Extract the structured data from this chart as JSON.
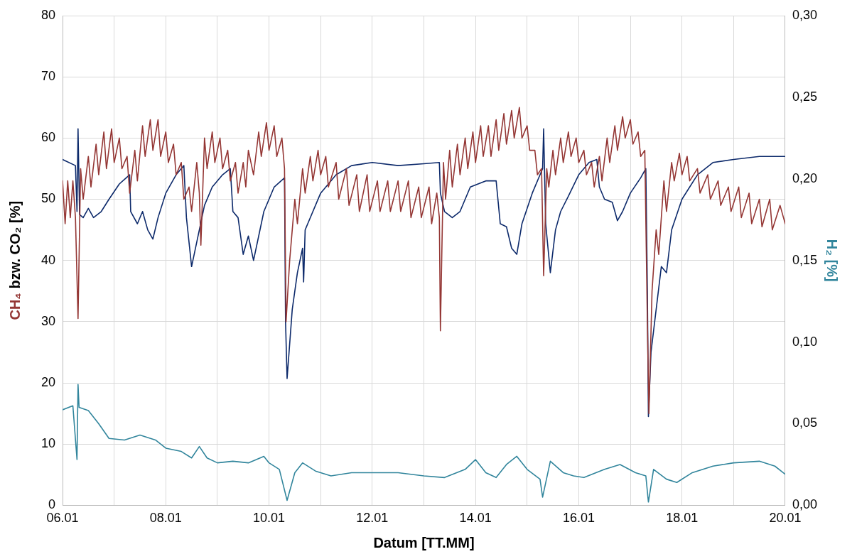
{
  "chart_data": {
    "type": "line",
    "xlabel": "Datum [TT.MM]",
    "ylabel": "CH₄ bzw. CO₂ [%]",
    "y2label": "H₂ [%]",
    "xlim": [
      "--01-06",
      "--01-20"
    ],
    "xticks": [
      {
        "value": "--01-06",
        "label": "06.01"
      },
      {
        "value": "--01-07",
        "label": null
      },
      {
        "value": "--01-08",
        "label": "08.01"
      },
      {
        "value": "--01-09",
        "label": null
      },
      {
        "value": "--01-10",
        "label": "10.01"
      },
      {
        "value": "--01-11",
        "label": null
      },
      {
        "value": "--01-12",
        "label": "12.01"
      },
      {
        "value": "--01-13",
        "label": null
      },
      {
        "value": "--01-14",
        "label": "14.01"
      },
      {
        "value": "--01-15",
        "label": null
      },
      {
        "value": "--01-16",
        "label": "16.01"
      },
      {
        "value": "--01-17",
        "label": null
      },
      {
        "value": "--01-18",
        "label": "18.01"
      },
      {
        "value": "--01-19",
        "label": null
      },
      {
        "value": "--01-20",
        "label": "20.01"
      }
    ],
    "ylim": [
      0,
      80
    ],
    "yticks": [
      0,
      10,
      20,
      30,
      40,
      50,
      60,
      70,
      80
    ],
    "y2lim": [
      0,
      0.3
    ],
    "y2ticks": [
      {
        "value": 0,
        "label": "0,00"
      },
      {
        "value": 0.05,
        "label": "0,05"
      },
      {
        "value": 0.1,
        "label": "0,10"
      },
      {
        "value": 0.15,
        "label": "0,15"
      },
      {
        "value": 0.2,
        "label": "0,20"
      },
      {
        "value": 0.25,
        "label": "0,25"
      },
      {
        "value": 0.3,
        "label": "0,30"
      }
    ],
    "grid": true,
    "legend": false,
    "marker": "none",
    "line_style": "solid",
    "series": [
      {
        "color": "#943634",
        "x": [
          "--01-06T00:00",
          "--01-06T01:12",
          "--01-06T02:24",
          "--01-06T03:36",
          "--01-06T04:48",
          "--01-06T06:00",
          "--01-06T07:12",
          "--01-06T08:24",
          "--01-06T09:36",
          "--01-06T12:00",
          "--01-06T13:12",
          "--01-06T15:36",
          "--01-06T16:48",
          "--01-06T19:12",
          "--01-06T20:24",
          "--01-06T22:48",
          "--01-07T00:00",
          "--01-07T02:24",
          "--01-07T03:36",
          "--01-07T06:00",
          "--01-07T07:12",
          "--01-07T09:36",
          "--01-07T10:48",
          "--01-07T13:12",
          "--01-07T14:24",
          "--01-07T16:48",
          "--01-07T18:00",
          "--01-07T20:24",
          "--01-07T21:36",
          "--01-08T00:00",
          "--01-08T01:12",
          "--01-08T03:36",
          "--01-08T04:48",
          "--01-08T07:12",
          "--01-08T08:24",
          "--01-08T10:48",
          "--01-08T12:00",
          "--01-08T14:24",
          "--01-08T15:36",
          "--01-08T16:19",
          "--01-08T18:00",
          "--01-08T19:12",
          "--01-08T21:36",
          "--01-08T22:48",
          "--01-09T01:12",
          "--01-09T02:24",
          "--01-09T04:48",
          "--01-09T06:00",
          "--01-09T08:24",
          "--01-09T09:36",
          "--01-09T12:00",
          "--01-09T13:12",
          "--01-09T14:24",
          "--01-09T16:48",
          "--01-09T19:12",
          "--01-09T20:24",
          "--01-09T22:48",
          "--01-10T00:00",
          "--01-10T02:24",
          "--01-10T03:36",
          "--01-10T06:00",
          "--01-10T07:12",
          "--01-10T07:55",
          "--01-10T09:36",
          "--01-10T10:48",
          "--01-10T12:00",
          "--01-10T13:12",
          "--01-10T15:36",
          "--01-10T16:48",
          "--01-10T19:12",
          "--01-10T20:24",
          "--01-10T22:48",
          "--01-11T00:00",
          "--01-11T02:24",
          "--01-11T03:36",
          "--01-11T07:12",
          "--01-11T08:24",
          "--01-11T12:00",
          "--01-11T13:12",
          "--01-11T16:48",
          "--01-11T18:00",
          "--01-11T21:36",
          "--01-11T22:48",
          "--01-12T02:24",
          "--01-12T03:36",
          "--01-12T07:12",
          "--01-12T08:24",
          "--01-12T12:00",
          "--01-12T13:12",
          "--01-12T16:48",
          "--01-12T18:00",
          "--01-12T21:36",
          "--01-12T22:48",
          "--01-13T02:24",
          "--01-13T03:36",
          "--01-13T06:00",
          "--01-13T07:12",
          "--01-13T07:41",
          "--01-13T09:07",
          "--01-13T10:05",
          "--01-13T12:00",
          "--01-13T13:12",
          "--01-13T15:36",
          "--01-13T16:48",
          "--01-13T19:12",
          "--01-13T20:24",
          "--01-13T22:48",
          "--01-14T00:00",
          "--01-14T02:24",
          "--01-14T03:36",
          "--01-14T06:00",
          "--01-14T07:12",
          "--01-14T09:36",
          "--01-14T10:48",
          "--01-14T13:12",
          "--01-14T14:24",
          "--01-14T16:48",
          "--01-14T18:00",
          "--01-14T20:24",
          "--01-14T21:36",
          "--01-15T00:00",
          "--01-15T01:12",
          "--01-15T03:36",
          "--01-15T04:48",
          "--01-15T06:43",
          "--01-15T07:41",
          "--01-15T09:07",
          "--01-15T10:05",
          "--01-15T12:00",
          "--01-15T13:12",
          "--01-15T15:36",
          "--01-15T16:48",
          "--01-15T19:12",
          "--01-15T20:24",
          "--01-15T22:48",
          "--01-16T00:00",
          "--01-16T02:24",
          "--01-16T03:36",
          "--01-16T06:00",
          "--01-16T07:12",
          "--01-16T09:36",
          "--01-16T10:48",
          "--01-16T13:12",
          "--01-16T14:24",
          "--01-16T16:48",
          "--01-16T18:00",
          "--01-16T20:24",
          "--01-16T21:36",
          "--01-17T00:00",
          "--01-17T01:12",
          "--01-17T03:36",
          "--01-17T04:48",
          "--01-17T06:43",
          "--01-17T07:55",
          "--01-17T08:38",
          "--01-17T10:05",
          "--01-17T12:00",
          "--01-17T13:12",
          "--01-17T15:36",
          "--01-17T16:48",
          "--01-17T19:12",
          "--01-17T20:24",
          "--01-17T22:48",
          "--01-18T00:00",
          "--01-18T02:24",
          "--01-18T03:36",
          "--01-18T07:12",
          "--01-18T08:24",
          "--01-18T12:00",
          "--01-18T13:12",
          "--01-18T16:48",
          "--01-18T18:00",
          "--01-18T21:36",
          "--01-18T22:48",
          "--01-19T02:24",
          "--01-19T03:36",
          "--01-19T07:12",
          "--01-19T08:24",
          "--01-19T12:00",
          "--01-19T13:12",
          "--01-19T16:48",
          "--01-19T18:00",
          "--01-19T21:36",
          "--01-20T00:00"
        ],
        "values": [
          53,
          46,
          53,
          47,
          53,
          47,
          30.5,
          55,
          50,
          57,
          52,
          59,
          54,
          61,
          55,
          61.5,
          56,
          60,
          55,
          57,
          51,
          58,
          53,
          62,
          57,
          63,
          58,
          63,
          57,
          61,
          56,
          59,
          54,
          56,
          50,
          52,
          48,
          56,
          51,
          42.5,
          60,
          55,
          61,
          56,
          60,
          55,
          58,
          53,
          56,
          51,
          56,
          52,
          58,
          54,
          61,
          57,
          62.5,
          58,
          62,
          57,
          60,
          55,
          30,
          40,
          45,
          50,
          46,
          55,
          51,
          57,
          53,
          58,
          54,
          57,
          52,
          56,
          50,
          55,
          49,
          54,
          48,
          54,
          48,
          53,
          48,
          53,
          48,
          53,
          48,
          53,
          47,
          52,
          47,
          52,
          46,
          51,
          47,
          28.5,
          56,
          50,
          58,
          52,
          59,
          54,
          60,
          55,
          61,
          56,
          62,
          57,
          62,
          57,
          63,
          58,
          64,
          59,
          64.5,
          60,
          65,
          60,
          62,
          58,
          58,
          54,
          55,
          37.5,
          55,
          52,
          58,
          54,
          60,
          56,
          61,
          57,
          60,
          56,
          58,
          54,
          56,
          52,
          57,
          53,
          60,
          56,
          62,
          58,
          63.5,
          60,
          63,
          59,
          61,
          57,
          58,
          30,
          15,
          35,
          45,
          41,
          53,
          48,
          56,
          53,
          57.5,
          54,
          57,
          53,
          55,
          51,
          54,
          50,
          53,
          49,
          52,
          48,
          52,
          47,
          51,
          46,
          50,
          45.5,
          50,
          45,
          49,
          46
        ]
      },
      {
        "color": "#0d2a6b",
        "x": [
          "--01-06T00:00",
          "--01-06T06:00",
          "--01-06T06:43",
          "--01-06T07:12",
          "--01-06T07:55",
          "--01-06T09:36",
          "--01-06T12:00",
          "--01-06T14:24",
          "--01-06T18:00",
          "--01-06T21:36",
          "--01-07T02:24",
          "--01-07T07:12",
          "--01-07T07:41",
          "--01-07T10:48",
          "--01-07T13:12",
          "--01-07T15:36",
          "--01-07T18:00",
          "--01-07T20:24",
          "--01-08T00:00",
          "--01-08T04:48",
          "--01-08T08:24",
          "--01-08T09:36",
          "--01-08T12:00",
          "--01-08T14:24",
          "--01-08T18:00",
          "--01-08T21:36",
          "--01-09T02:24",
          "--01-09T06:00",
          "--01-09T07:12",
          "--01-09T09:36",
          "--01-09T12:00",
          "--01-09T14:24",
          "--01-09T16:48",
          "--01-09T19:12",
          "--01-09T21:36",
          "--01-10T02:24",
          "--01-10T07:12",
          "--01-10T07:41",
          "--01-10T08:24",
          "--01-10T10:48",
          "--01-10T13:12",
          "--01-10T15:36",
          "--01-10T16:05",
          "--01-10T16:48",
          "--01-10T18:00",
          "--01-11T00:00",
          "--01-11T07:12",
          "--01-11T14:24",
          "--01-12T00:00",
          "--01-12T12:00",
          "--01-13T00:00",
          "--01-13T07:12",
          "--01-13T07:41",
          "--01-13T09:36",
          "--01-13T13:12",
          "--01-13T16:48",
          "--01-13T21:36",
          "--01-14T04:48",
          "--01-14T09:36",
          "--01-14T11:31",
          "--01-14T14:24",
          "--01-14T16:48",
          "--01-14T19:12",
          "--01-14T21:36",
          "--01-15T02:24",
          "--01-15T07:12",
          "--01-15T07:41",
          "--01-15T08:38",
          "--01-15T10:48",
          "--01-15T13:12",
          "--01-15T15:36",
          "--01-15T19:12",
          "--01-16T00:00",
          "--01-16T04:48",
          "--01-16T08:24",
          "--01-16T09:36",
          "--01-16T12:00",
          "--01-16T15:36",
          "--01-16T18:00",
          "--01-16T20:24",
          "--01-17T00:00",
          "--01-17T04:48",
          "--01-17T07:12",
          "--01-17T07:55",
          "--01-17T08:24",
          "--01-17T09:36",
          "--01-17T12:00",
          "--01-17T14:24",
          "--01-17T16:48",
          "--01-17T19:12",
          "--01-18T00:00",
          "--01-18T07:12",
          "--01-18T14:24",
          "--01-19T00:00",
          "--01-19T12:00",
          "--01-20T00:00"
        ],
        "values": [
          56.5,
          55.5,
          48,
          61.5,
          47.5,
          47,
          48.5,
          47,
          48,
          50,
          52.5,
          54,
          48,
          46,
          48,
          45,
          43.5,
          47,
          51,
          54,
          55.5,
          47,
          39,
          43,
          49,
          52,
          54,
          55,
          48,
          47,
          41,
          44,
          40,
          44,
          48,
          52,
          53.5,
          30,
          20.7,
          32,
          38,
          42,
          36.5,
          45,
          46,
          51,
          54,
          55.5,
          56,
          55.5,
          55.8,
          56,
          51,
          48,
          47,
          48,
          52,
          53,
          53,
          46,
          45.5,
          42,
          41,
          46,
          51,
          55,
          61.5,
          46,
          38,
          45,
          48,
          50.5,
          54,
          56,
          56.5,
          52,
          50,
          49.5,
          46.5,
          48,
          51,
          53.5,
          55,
          35,
          14.5,
          25,
          32,
          39,
          38,
          45,
          50,
          54,
          56,
          56.5,
          57,
          57
        ]
      },
      {
        "color": "#31859c",
        "axis": "y2",
        "x": [
          "--01-06T00:00",
          "--01-06T04:48",
          "--01-06T06:43",
          "--01-06T07:12",
          "--01-06T07:41",
          "--01-06T12:00",
          "--01-06T16:48",
          "--01-06T21:36",
          "--01-07T04:48",
          "--01-07T12:00",
          "--01-07T19:12",
          "--01-08T00:00",
          "--01-08T07:12",
          "--01-08T12:00",
          "--01-08T15:36",
          "--01-08T19:12",
          "--01-09T00:00",
          "--01-09T07:12",
          "--01-09T14:24",
          "--01-09T21:36",
          "--01-10T00:00",
          "--01-10T04:48",
          "--01-10T08:24",
          "--01-10T12:00",
          "--01-10T15:36",
          "--01-10T21:36",
          "--01-11T04:48",
          "--01-11T14:24",
          "--01-12T00:00",
          "--01-12T12:00",
          "--01-13T00:00",
          "--01-13T09:36",
          "--01-13T19:12",
          "--01-14T00:00",
          "--01-14T04:48",
          "--01-14T09:36",
          "--01-14T14:24",
          "--01-14T19:12",
          "--01-15T00:00",
          "--01-15T06:00",
          "--01-15T07:12",
          "--01-15T10:48",
          "--01-15T16:48",
          "--01-15T21:36",
          "--01-16T02:24",
          "--01-16T12:00",
          "--01-16T19:12",
          "--01-17T02:24",
          "--01-17T07:12",
          "--01-17T08:24",
          "--01-17T10:48",
          "--01-17T16:48",
          "--01-17T21:36",
          "--01-18T04:48",
          "--01-18T14:24",
          "--01-19T00:00",
          "--01-19T12:00",
          "--01-19T19:12",
          "--01-20T00:00"
        ],
        "values": [
          0.0585,
          0.061,
          0.028,
          0.074,
          0.06,
          0.058,
          0.05,
          0.041,
          0.04,
          0.043,
          0.04,
          0.035,
          0.033,
          0.029,
          0.036,
          0.029,
          0.026,
          0.027,
          0.026,
          0.03,
          0.026,
          0.022,
          0.003,
          0.02,
          0.026,
          0.021,
          0.018,
          0.02,
          0.02,
          0.02,
          0.018,
          0.017,
          0.022,
          0.028,
          0.02,
          0.017,
          0.025,
          0.03,
          0.022,
          0.016,
          0.005,
          0.027,
          0.02,
          0.018,
          0.017,
          0.022,
          0.025,
          0.02,
          0.018,
          0.002,
          0.022,
          0.016,
          0.014,
          0.02,
          0.024,
          0.026,
          0.027,
          0.024,
          0.019
        ]
      }
    ]
  }
}
